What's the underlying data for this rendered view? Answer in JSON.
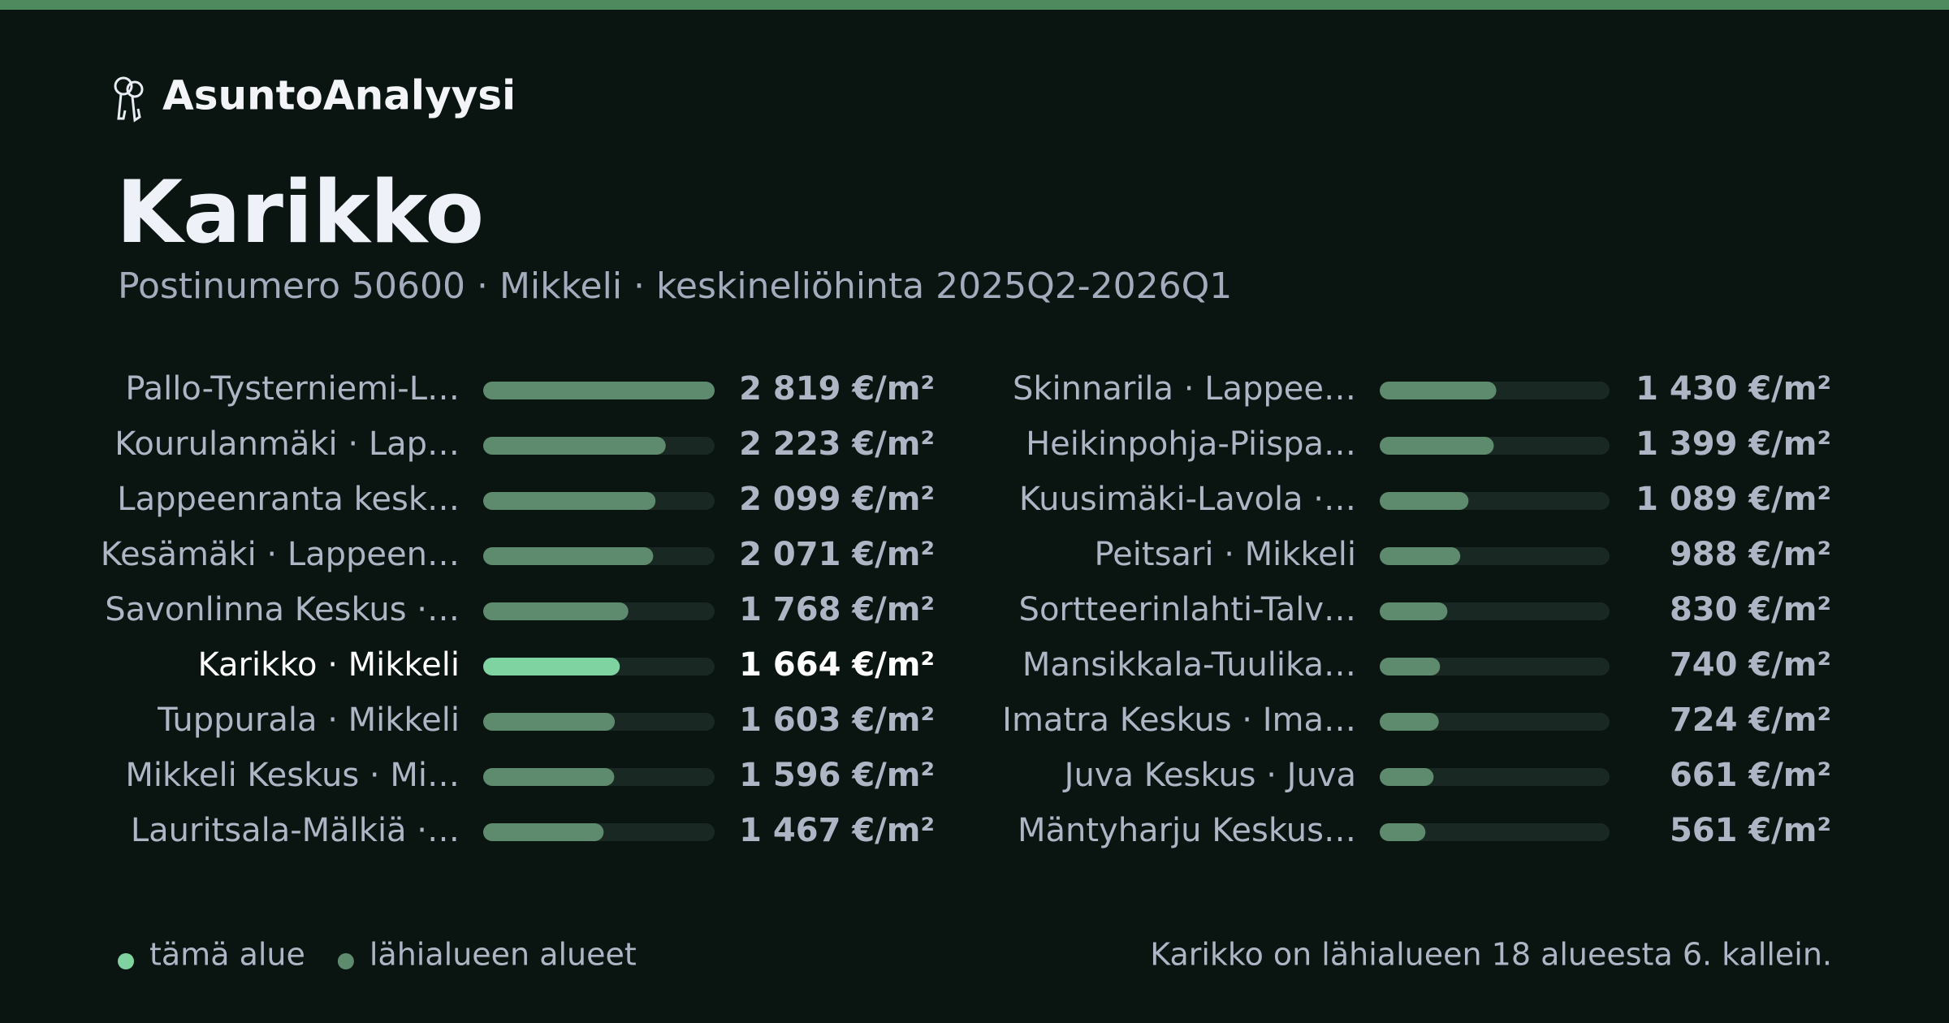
{
  "header": {
    "brand": "AsuntoAnalyysi"
  },
  "chart_data": {
    "type": "bar",
    "orientation": "horizontal",
    "title": "Karikko",
    "subtitle": "Postinumero 50600 · Mikkeli · keskineliöhinta 2025Q2-2026Q1",
    "categories": [
      "Pallo-Tysterniemi-L…",
      "Kourulanmäki · Lap…",
      "Lappeenranta kesk…",
      "Kesämäki · Lappeen…",
      "Savonlinna Keskus ·…",
      "Karikko · Mikkeli",
      "Tuppurala · Mikkeli",
      "Mikkeli Keskus · Mi…",
      "Lauritsala-Mälkiä ·…",
      "Skinnarila · Lappee…",
      "Heikinpohja-Piispa…",
      "Kuusimäki-Lavola ·…",
      "Peitsari · Mikkeli",
      "Sortteerinlahti-Talv…",
      "Mansikkala-Tuulika…",
      "Imatra Keskus · Ima…",
      "Juva Keskus · Juva",
      "Mäntyharju Keskus…"
    ],
    "values": [
      2819,
      2223,
      2099,
      2071,
      1768,
      1664,
      1603,
      1596,
      1467,
      1430,
      1399,
      1089,
      988,
      830,
      740,
      724,
      661,
      561
    ],
    "value_labels": [
      "2 819 €/m²",
      "2 223 €/m²",
      "2 099 €/m²",
      "2 071 €/m²",
      "1 768 €/m²",
      "1 664 €/m²",
      "1 603 €/m²",
      "1 596 €/m²",
      "1 467 €/m²",
      "1 430 €/m²",
      "1 399 €/m²",
      "1 089 €/m²",
      "988 €/m²",
      "830 €/m²",
      "740 €/m²",
      "724 €/m²",
      "661 €/m²",
      "561 €/m²"
    ],
    "xlim": [
      0,
      2819
    ],
    "color": "#5e8a6e",
    "highlight": 5,
    "highlight_color": "#7fd3a0",
    "legend": [
      {
        "label": "tämä alue",
        "color": "#7fd3a0"
      },
      {
        "label": "lähialueen alueet",
        "color": "#5e8a6e"
      }
    ],
    "note": "Karikko on lähialueen 18 alueesta 6. kallein."
  }
}
